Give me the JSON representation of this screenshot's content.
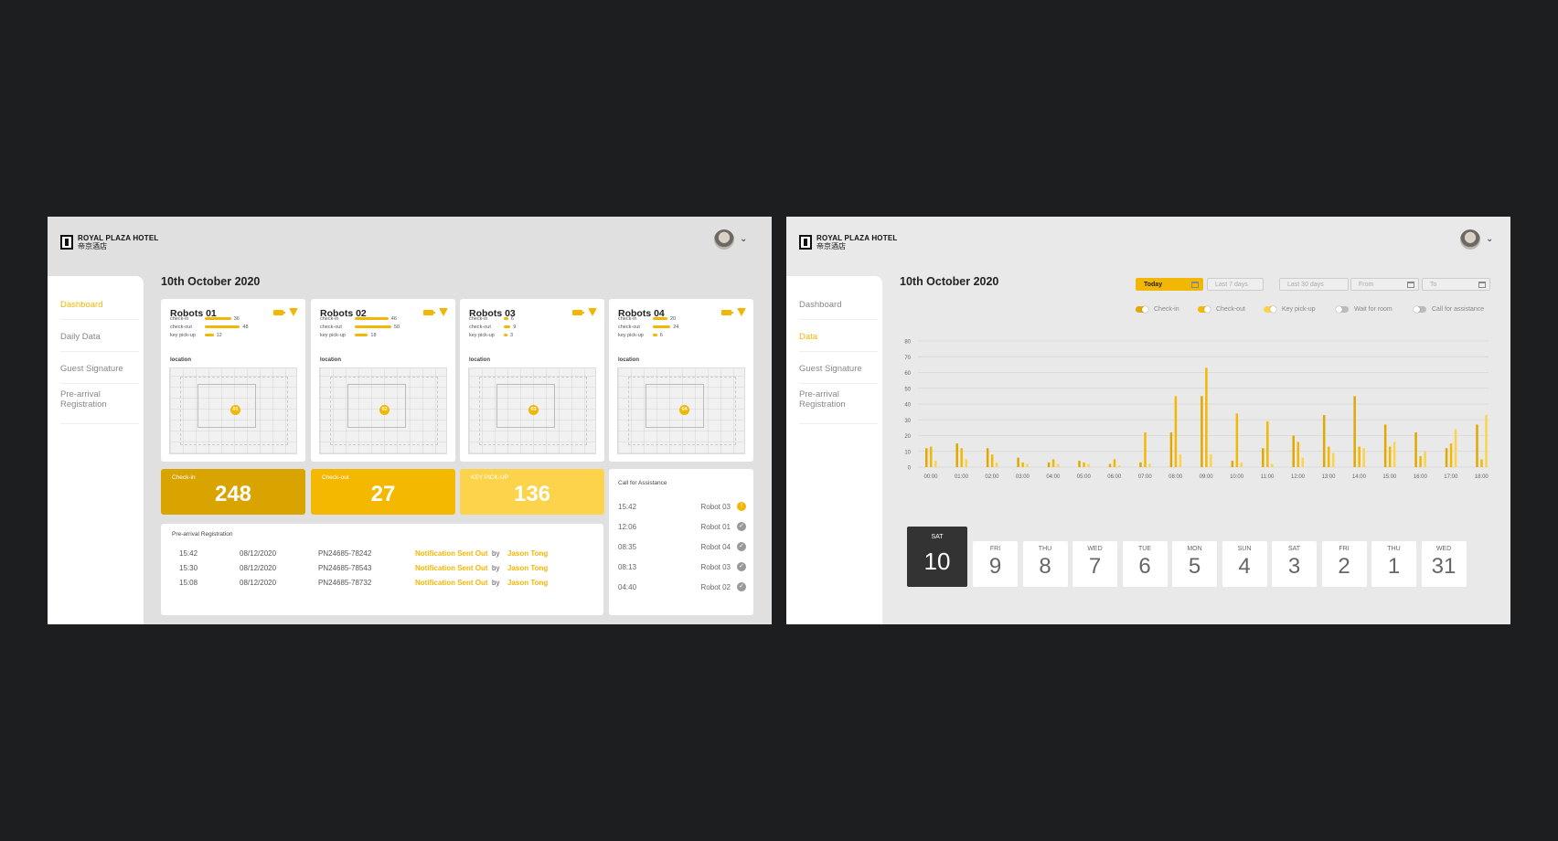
{
  "hotel": {
    "name_en": "ROYAL PLAZA HOTEL",
    "name_cn": "帝京酒店"
  },
  "dashboard": {
    "sidebar": [
      "Dashboard",
      "Daily Data",
      "Guest Signature",
      "Pre-arrival Registration"
    ],
    "date": "10th October 2020",
    "robots": [
      {
        "title": "Robots 01",
        "pin": "01",
        "checkin": 36,
        "checkout": 48,
        "key_pickup": 12
      },
      {
        "title": "Robots 02",
        "pin": "02",
        "checkin": 46,
        "checkout": 50,
        "key_pickup": 18
      },
      {
        "title": "Robots 03",
        "pin": "03",
        "checkin": 6,
        "checkout": 9,
        "key_pickup": 3
      },
      {
        "title": "Robots 04",
        "pin": "04",
        "checkin": 20,
        "checkout": 24,
        "key_pickup": 6
      }
    ],
    "stat_labels": {
      "checkin": "check-in",
      "checkout": "check-out",
      "key_pickup": "key pick-up",
      "location": "location"
    },
    "kpis": [
      {
        "label": "Check-in",
        "value": "248",
        "color": "#d9a300"
      },
      {
        "label": "Check-out",
        "value": "27",
        "color": "#f5b800"
      },
      {
        "label": "KEY PICK-UP",
        "value": "136",
        "color": "#fcd34a"
      }
    ],
    "prereg_title": "Pre-arrival Registration",
    "prereg_rows": [
      {
        "time": "15:42",
        "date": "08/12/2020",
        "id": "PN24685-78242",
        "status": "Notification Sent Out",
        "by": "by",
        "who": "Jason Tong"
      },
      {
        "time": "15:30",
        "date": "08/12/2020",
        "id": "PN24685-78543",
        "status": "Notification Sent Out",
        "by": "by",
        "who": "Jason Tong"
      },
      {
        "time": "15:08",
        "date": "08/12/2020",
        "id": "PN24685-78732",
        "status": "Notification Sent Out",
        "by": "by",
        "who": "Jason Tong"
      }
    ],
    "assist_title": "Call for Assistance",
    "assist_rows": [
      {
        "time": "15:42",
        "robot": "Robot 03",
        "state": "alert"
      },
      {
        "time": "12:06",
        "robot": "Robot 01",
        "state": "done"
      },
      {
        "time": "08:35",
        "robot": "Robot 04",
        "state": "done"
      },
      {
        "time": "08:13",
        "robot": "Robot 03",
        "state": "done"
      },
      {
        "time": "04:40",
        "robot": "Robot 02",
        "state": "done"
      }
    ]
  },
  "data_view": {
    "sidebar": [
      "Dashboard",
      "Data",
      "Guest Signature",
      "Pre-arrival Registration"
    ],
    "date": "10th October 2020",
    "filters": [
      "Today",
      "Last 7 days",
      "Last 30 days",
      "From",
      "To"
    ],
    "legend": [
      {
        "label": "Check-in",
        "on": true,
        "color": "#e0a800"
      },
      {
        "label": "Check-out",
        "on": true,
        "color": "#f5b800"
      },
      {
        "label": "Key pick-up",
        "on": true,
        "color": "#fcd34a"
      },
      {
        "label": "Wait for room",
        "on": false,
        "color": "#aaaaaa"
      },
      {
        "label": "Call for assistance",
        "on": false,
        "color": "#aaaaaa"
      }
    ],
    "days": [
      {
        "name": "SAT",
        "num": "10",
        "selected": true
      },
      {
        "name": "FRI",
        "num": "9"
      },
      {
        "name": "THU",
        "num": "8"
      },
      {
        "name": "WED",
        "num": "7"
      },
      {
        "name": "TUE",
        "num": "6"
      },
      {
        "name": "MON",
        "num": "5"
      },
      {
        "name": "SUN",
        "num": "4"
      },
      {
        "name": "SAT",
        "num": "3"
      },
      {
        "name": "FRI",
        "num": "2"
      },
      {
        "name": "THU",
        "num": "1"
      },
      {
        "name": "WED",
        "num": "31"
      }
    ]
  },
  "chart_data": {
    "type": "bar",
    "categories": [
      "00:00",
      "01:00",
      "02:00",
      "03:00",
      "04:00",
      "05:00",
      "06:00",
      "07:00",
      "08:00",
      "09:00",
      "10:00",
      "11:00",
      "12:00",
      "13:00",
      "14:00",
      "15:00",
      "16:00",
      "17:00",
      "18:00"
    ],
    "ylim": [
      0,
      80
    ],
    "yticks": [
      0,
      10,
      20,
      30,
      40,
      50,
      60,
      70,
      80
    ],
    "grid": true,
    "series": [
      {
        "name": "Check-in",
        "color": "#e0a800",
        "values": [
          12,
          15,
          12,
          6,
          3,
          4,
          2,
          3,
          22,
          45,
          4,
          12,
          20,
          33,
          45,
          27,
          22,
          12,
          27
        ]
      },
      {
        "name": "Check-out",
        "color": "#f5b800",
        "values": [
          13,
          12,
          8,
          3,
          5,
          3,
          5,
          22,
          45,
          63,
          34,
          29,
          16,
          13,
          13,
          13,
          7,
          15,
          5
        ]
      },
      {
        "name": "Key pick-up",
        "color": "#fcd34a",
        "values": [
          4,
          5,
          3,
          2,
          2,
          2,
          1,
          2,
          8,
          8,
          3,
          2,
          6,
          9,
          12,
          16,
          10,
          24,
          33
        ]
      }
    ]
  }
}
